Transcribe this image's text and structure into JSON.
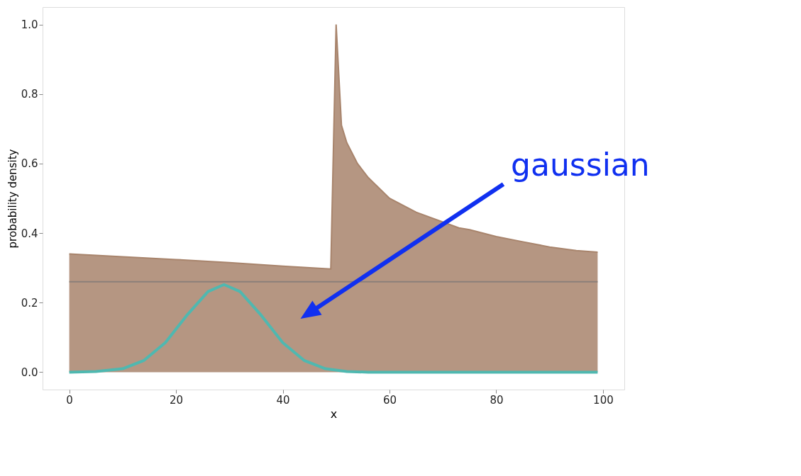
{
  "chart_data": {
    "type": "line",
    "xlabel": "x",
    "ylabel": "probability density",
    "xlim": [
      -5,
      104
    ],
    "xticks": [
      0,
      20,
      40,
      60,
      80,
      100
    ],
    "ylim": [
      -0.05,
      1.05
    ],
    "yticks": [
      {
        "value": 0,
        "label": "0.0"
      },
      0.2,
      0.4,
      0.6,
      0.8,
      {
        "value": 1,
        "label": "1.0"
      }
    ],
    "grid": false,
    "series": [
      {
        "type": "area",
        "color": "#a8846c",
        "x": [
          0,
          10,
          20,
          30,
          40,
          49,
          50,
          51,
          52,
          54,
          56,
          60,
          65,
          73,
          75,
          80,
          85,
          90,
          95,
          99
        ],
        "values": [
          0.34,
          0.332,
          0.324,
          0.315,
          0.305,
          0.297,
          1.0,
          0.71,
          0.66,
          0.6,
          0.56,
          0.5,
          0.46,
          0.415,
          0.41,
          0.39,
          0.375,
          0.36,
          0.35,
          0.345
        ]
      },
      {
        "color": "#8c7f7a",
        "x": [
          0,
          99
        ],
        "values": [
          0.26,
          0.26
        ]
      },
      {
        "type": "line",
        "color": "#4fb8b0",
        "x": [
          0,
          5,
          10,
          14,
          18,
          22,
          26,
          29,
          32,
          36,
          40,
          44,
          48,
          52,
          56,
          99
        ],
        "values": [
          0,
          0.002,
          0.01,
          0.034,
          0.085,
          0.163,
          0.232,
          0.252,
          0.232,
          0.163,
          0.085,
          0.034,
          0.01,
          0.002,
          0,
          0
        ]
      }
    ],
    "annotations": [
      "gaussian"
    ]
  }
}
